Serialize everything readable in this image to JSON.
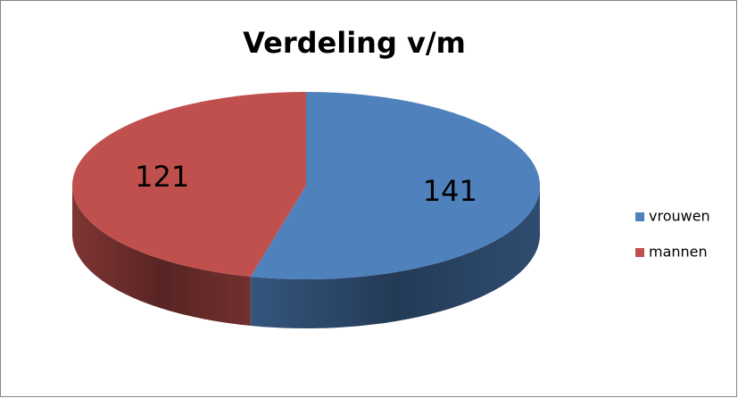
{
  "chart_data": {
    "type": "pie",
    "title": "Verdeling v/m",
    "categories": [
      "vrouwen",
      "mannen"
    ],
    "values": [
      141,
      121
    ],
    "colors": [
      "#4f81bd",
      "#c0504d"
    ],
    "legend": "right"
  }
}
